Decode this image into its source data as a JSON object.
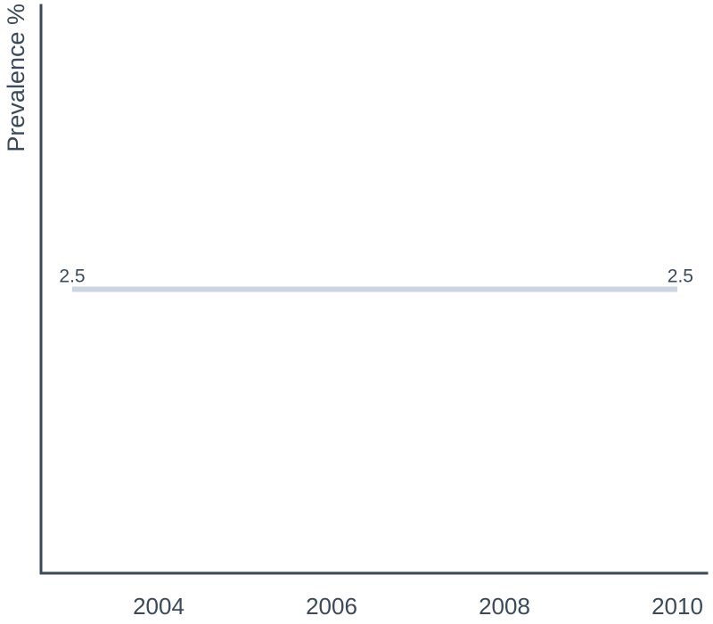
{
  "chart_data": {
    "type": "line",
    "title": "",
    "xlabel": "",
    "ylabel": "Prevalence %",
    "x": [
      2003,
      2010
    ],
    "x_ticks": [
      "2004",
      "2006",
      "2008",
      "2010"
    ],
    "xlim": [
      2003,
      2010
    ],
    "ylim": [
      0,
      5
    ],
    "grid": false,
    "legend": "none",
    "series": [
      {
        "color": "#ccd6e2",
        "points": [
          {
            "x": 2003,
            "y": 2.5,
            "label": "2.5"
          },
          {
            "x": 2010,
            "y": 2.5,
            "label": "2.5"
          }
        ]
      }
    ],
    "colors": {
      "axis": "#3b4a5a",
      "text": "#3b4a5a"
    }
  }
}
